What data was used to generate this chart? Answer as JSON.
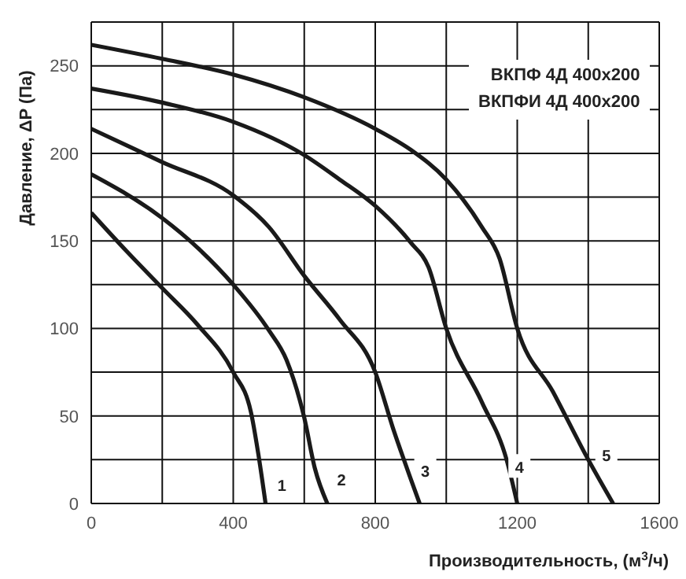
{
  "chart_data": {
    "type": "line",
    "xlabel": "Производительность, (м$^{3}$/ч)",
    "ylabel": "Давление, ΔP (Па)",
    "annotations": [
      "ВКПФ 4Д 400x200",
      "ВКПФИ 4Д 400x200",
      {
        "text": "1",
        "x": 537,
        "y": 11
      },
      {
        "text": "2",
        "x": 705,
        "y": 14
      },
      {
        "text": "3",
        "x": 941,
        "y": 19
      },
      {
        "text": "4",
        "x": 1206,
        "y": 21
      },
      {
        "text": "5",
        "x": 1451,
        "y": 28
      }
    ],
    "series": [
      {
        "color": "#1a1a1a",
        "x": [
          0,
          100,
          200,
          300,
          400,
          450,
          470,
          491
        ],
        "values": [
          166,
          144,
          123,
          102,
          75,
          52,
          29,
          0
        ]
      },
      {
        "color": "#1a1a1a",
        "x": [
          0,
          200,
          300,
          400,
          500,
          550,
          600,
          630,
          665
        ],
        "values": [
          188,
          163,
          146,
          125,
          99,
          82,
          49,
          20,
          0
        ]
      },
      {
        "color": "#1a1a1a",
        "x": [
          0,
          200,
          400,
          500,
          600,
          700,
          800,
          850,
          900,
          925
        ],
        "values": [
          214,
          195,
          176,
          158,
          130,
          105,
          75,
          43,
          14,
          0
        ]
      },
      {
        "color": "#1a1a1a",
        "x": [
          0,
          200,
          400,
          600,
          700,
          800,
          900,
          950,
          1000,
          1100,
          1170,
          1200
        ],
        "values": [
          237,
          229,
          218,
          199,
          185,
          170,
          149,
          135,
          100,
          58,
          25,
          0
        ]
      },
      {
        "color": "#1a1a1a",
        "x": [
          0,
          200,
          400,
          600,
          800,
          900,
          1000,
          1100,
          1150,
          1200,
          1300,
          1400,
          1470
        ],
        "values": [
          262,
          254,
          245,
          232,
          214,
          202,
          185,
          158,
          140,
          100,
          64,
          25,
          0
        ]
      }
    ],
    "xlim": [
      0,
      1600
    ],
    "xticks": [
      0,
      {
        "value": 200,
        "label": null
      },
      400,
      {
        "value": 600,
        "label": null
      },
      800,
      {
        "value": 1000,
        "label": null
      },
      1200,
      {
        "value": 1400,
        "label": null
      },
      1600
    ],
    "ylim": [
      0,
      275
    ],
    "yticks": [
      0,
      {
        "value": 25,
        "label": null
      },
      50,
      {
        "value": 75,
        "label": null
      },
      100,
      {
        "value": 125,
        "label": null
      },
      150,
      {
        "value": 175,
        "label": null
      },
      200,
      {
        "value": 225,
        "label": null
      },
      250,
      {
        "value": 275,
        "label": null
      }
    ],
    "grid": true,
    "legend": false,
    "marker": "none",
    "line_style": "solid"
  }
}
